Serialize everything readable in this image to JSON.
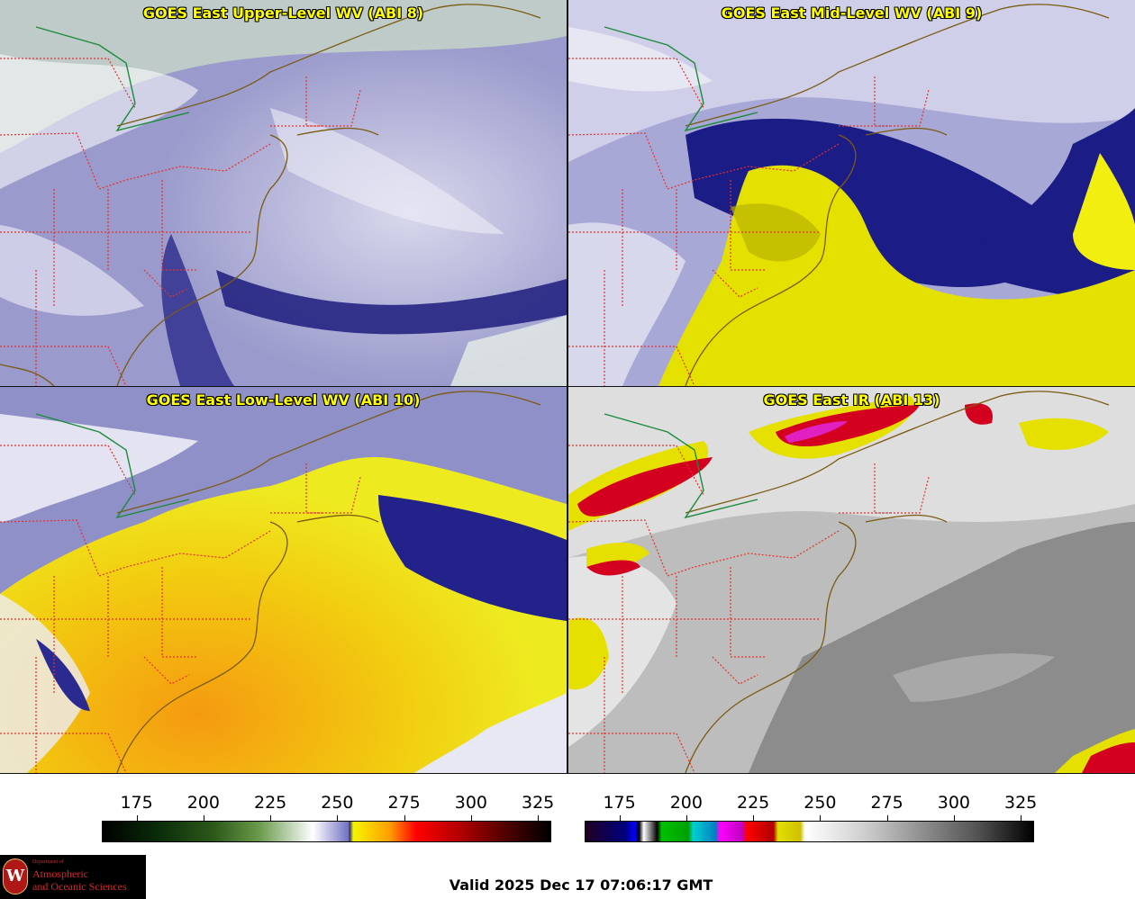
{
  "panels": [
    {
      "title": "GOES East Upper-Level WV (ABI 8)"
    },
    {
      "title": "GOES East Mid-Level WV (ABI 9)"
    },
    {
      "title": "GOES East Low-Level WV (ABI 10)"
    },
    {
      "title": "GOES East IR (ABI 13)"
    }
  ],
  "colorbar_wv": {
    "ticks": [
      "175",
      "200",
      "225",
      "250",
      "275",
      "300",
      "325"
    ],
    "range": [
      162,
      330
    ]
  },
  "colorbar_ir": {
    "ticks": [
      "175",
      "200",
      "225",
      "250",
      "275",
      "300",
      "325"
    ],
    "range": [
      162,
      330
    ]
  },
  "logo": {
    "dept": "Department of",
    "line1": "Atmospheric",
    "line2": "and Oceanic Sciences",
    "seal": "W"
  },
  "valid_time": "Valid 2025 Dec 17 07:06:17 GMT",
  "colors": {
    "title_text": "#ffff00",
    "state_borders": "#e8302a",
    "coastlines": "#7a5a10",
    "international_border": "#1a8a3a"
  }
}
